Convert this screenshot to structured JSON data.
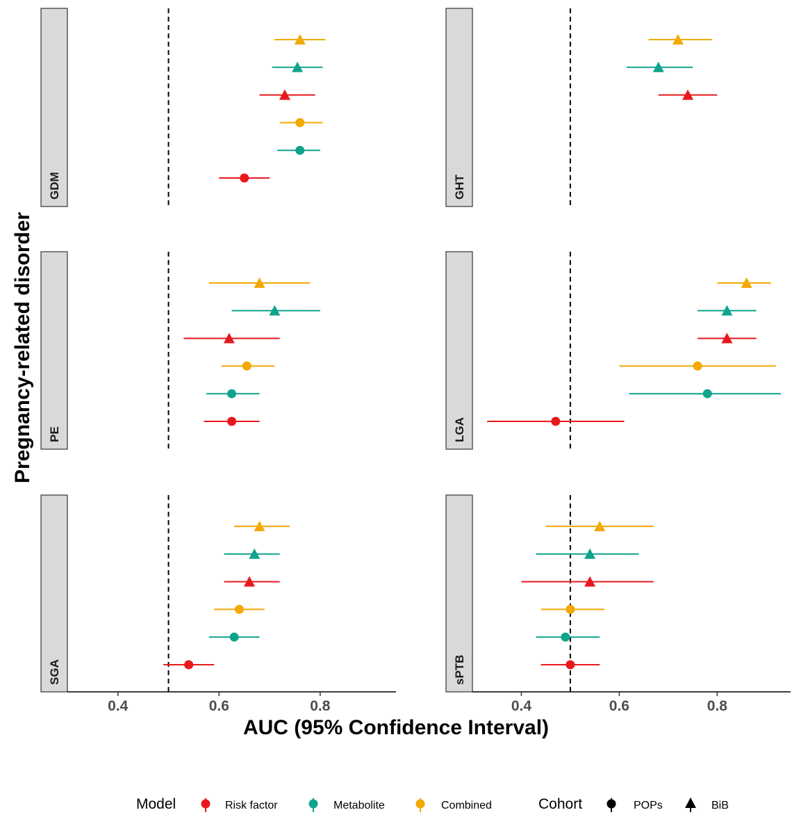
{
  "chart_data": {
    "type": "scatter",
    "subtype": "forest-plot-faceted",
    "xlabel": "AUC (95% Confidence Interval)",
    "ylabel": "Pregnancy-related disorder",
    "xlim": [
      0.3,
      0.95
    ],
    "x_ticks": [
      0.4,
      0.6,
      0.8
    ],
    "x_tick_labels": [
      "0.4",
      "0.6",
      "0.8"
    ],
    "reference_line": 0.5,
    "grid": false,
    "colors": {
      "Risk factor": "#E8191C",
      "Metabolite": "#0FA38C",
      "Combined": "#F2A900"
    },
    "legend": {
      "placement": "bottom",
      "model_title": "Model",
      "models": [
        "Risk factor",
        "Metabolite",
        "Combined"
      ],
      "cohort_title": "Cohort",
      "cohorts": [
        "POPs",
        "BiB"
      ]
    },
    "facets": [
      {
        "label": "GDM",
        "points": [
          {
            "model": "Combined",
            "cohort": "BiB",
            "auc": 0.76,
            "lo": 0.71,
            "hi": 0.81
          },
          {
            "model": "Metabolite",
            "cohort": "BiB",
            "auc": 0.755,
            "lo": 0.705,
            "hi": 0.805
          },
          {
            "model": "Risk factor",
            "cohort": "BiB",
            "auc": 0.73,
            "lo": 0.68,
            "hi": 0.79
          },
          {
            "model": "Combined",
            "cohort": "POPs",
            "auc": 0.76,
            "lo": 0.72,
            "hi": 0.805
          },
          {
            "model": "Metabolite",
            "cohort": "POPs",
            "auc": 0.76,
            "lo": 0.715,
            "hi": 0.8
          },
          {
            "model": "Risk factor",
            "cohort": "POPs",
            "auc": 0.65,
            "lo": 0.6,
            "hi": 0.7
          }
        ]
      },
      {
        "label": "GHT",
        "points": [
          {
            "model": "Combined",
            "cohort": "BiB",
            "auc": 0.72,
            "lo": 0.66,
            "hi": 0.79
          },
          {
            "model": "Metabolite",
            "cohort": "BiB",
            "auc": 0.68,
            "lo": 0.615,
            "hi": 0.75
          },
          {
            "model": "Risk factor",
            "cohort": "BiB",
            "auc": 0.74,
            "lo": 0.68,
            "hi": 0.8
          }
        ]
      },
      {
        "label": "PE",
        "points": [
          {
            "model": "Combined",
            "cohort": "BiB",
            "auc": 0.68,
            "lo": 0.58,
            "hi": 0.78
          },
          {
            "model": "Metabolite",
            "cohort": "BiB",
            "auc": 0.71,
            "lo": 0.625,
            "hi": 0.8
          },
          {
            "model": "Risk factor",
            "cohort": "BiB",
            "auc": 0.62,
            "lo": 0.53,
            "hi": 0.72
          },
          {
            "model": "Combined",
            "cohort": "POPs",
            "auc": 0.655,
            "lo": 0.605,
            "hi": 0.71
          },
          {
            "model": "Metabolite",
            "cohort": "POPs",
            "auc": 0.625,
            "lo": 0.575,
            "hi": 0.68
          },
          {
            "model": "Risk factor",
            "cohort": "POPs",
            "auc": 0.625,
            "lo": 0.57,
            "hi": 0.68
          }
        ]
      },
      {
        "label": "LGA",
        "points": [
          {
            "model": "Combined",
            "cohort": "BiB",
            "auc": 0.86,
            "lo": 0.8,
            "hi": 0.91
          },
          {
            "model": "Metabolite",
            "cohort": "BiB",
            "auc": 0.82,
            "lo": 0.76,
            "hi": 0.88
          },
          {
            "model": "Risk factor",
            "cohort": "BiB",
            "auc": 0.82,
            "lo": 0.76,
            "hi": 0.88
          },
          {
            "model": "Combined",
            "cohort": "POPs",
            "auc": 0.76,
            "lo": 0.6,
            "hi": 0.92
          },
          {
            "model": "Metabolite",
            "cohort": "POPs",
            "auc": 0.78,
            "lo": 0.62,
            "hi": 0.93
          },
          {
            "model": "Risk factor",
            "cohort": "POPs",
            "auc": 0.47,
            "lo": 0.33,
            "hi": 0.61
          }
        ]
      },
      {
        "label": "SGA",
        "points": [
          {
            "model": "Combined",
            "cohort": "BiB",
            "auc": 0.68,
            "lo": 0.63,
            "hi": 0.74
          },
          {
            "model": "Metabolite",
            "cohort": "BiB",
            "auc": 0.67,
            "lo": 0.61,
            "hi": 0.72
          },
          {
            "model": "Risk factor",
            "cohort": "BiB",
            "auc": 0.66,
            "lo": 0.61,
            "hi": 0.72
          },
          {
            "model": "Combined",
            "cohort": "POPs",
            "auc": 0.64,
            "lo": 0.59,
            "hi": 0.69
          },
          {
            "model": "Metabolite",
            "cohort": "POPs",
            "auc": 0.63,
            "lo": 0.58,
            "hi": 0.68
          },
          {
            "model": "Risk factor",
            "cohort": "POPs",
            "auc": 0.54,
            "lo": 0.49,
            "hi": 0.59
          }
        ]
      },
      {
        "label": "sPTB",
        "points": [
          {
            "model": "Combined",
            "cohort": "BiB",
            "auc": 0.56,
            "lo": 0.45,
            "hi": 0.67
          },
          {
            "model": "Metabolite",
            "cohort": "BiB",
            "auc": 0.54,
            "lo": 0.43,
            "hi": 0.64
          },
          {
            "model": "Risk factor",
            "cohort": "BiB",
            "auc": 0.54,
            "lo": 0.4,
            "hi": 0.67
          },
          {
            "model": "Combined",
            "cohort": "POPs",
            "auc": 0.5,
            "lo": 0.44,
            "hi": 0.57
          },
          {
            "model": "Metabolite",
            "cohort": "POPs",
            "auc": 0.49,
            "lo": 0.43,
            "hi": 0.56
          },
          {
            "model": "Risk factor",
            "cohort": "POPs",
            "auc": 0.5,
            "lo": 0.44,
            "hi": 0.56
          }
        ]
      }
    ]
  }
}
